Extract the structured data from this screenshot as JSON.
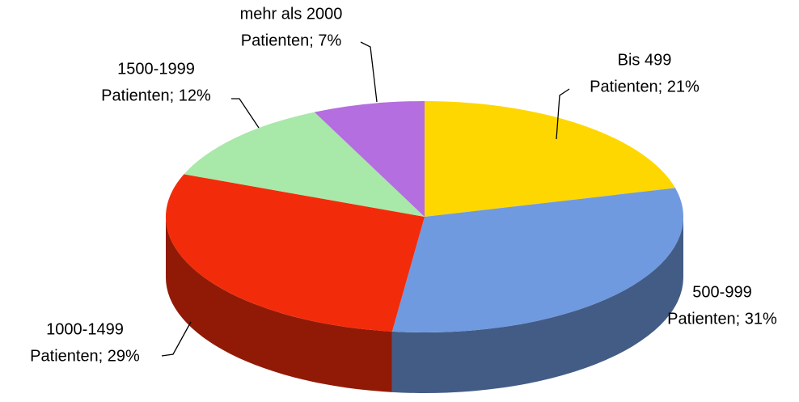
{
  "chart_data": {
    "type": "pie",
    "categories": [
      "Bis 499",
      "500-999",
      "1000-1499",
      "1500-1999",
      "mehr als 2000"
    ],
    "values": [
      21,
      31,
      29,
      12,
      7
    ],
    "value_labels": [
      "Patienten; 21%",
      "Patienten; 31%",
      "Patienten; 29%",
      "Patienten; 12%",
      "Patienten; 7%"
    ],
    "colors": [
      "#ffd700",
      "#6f9ae0",
      "#f22c0a",
      "#a8e8a8",
      "#b46ee0"
    ]
  }
}
